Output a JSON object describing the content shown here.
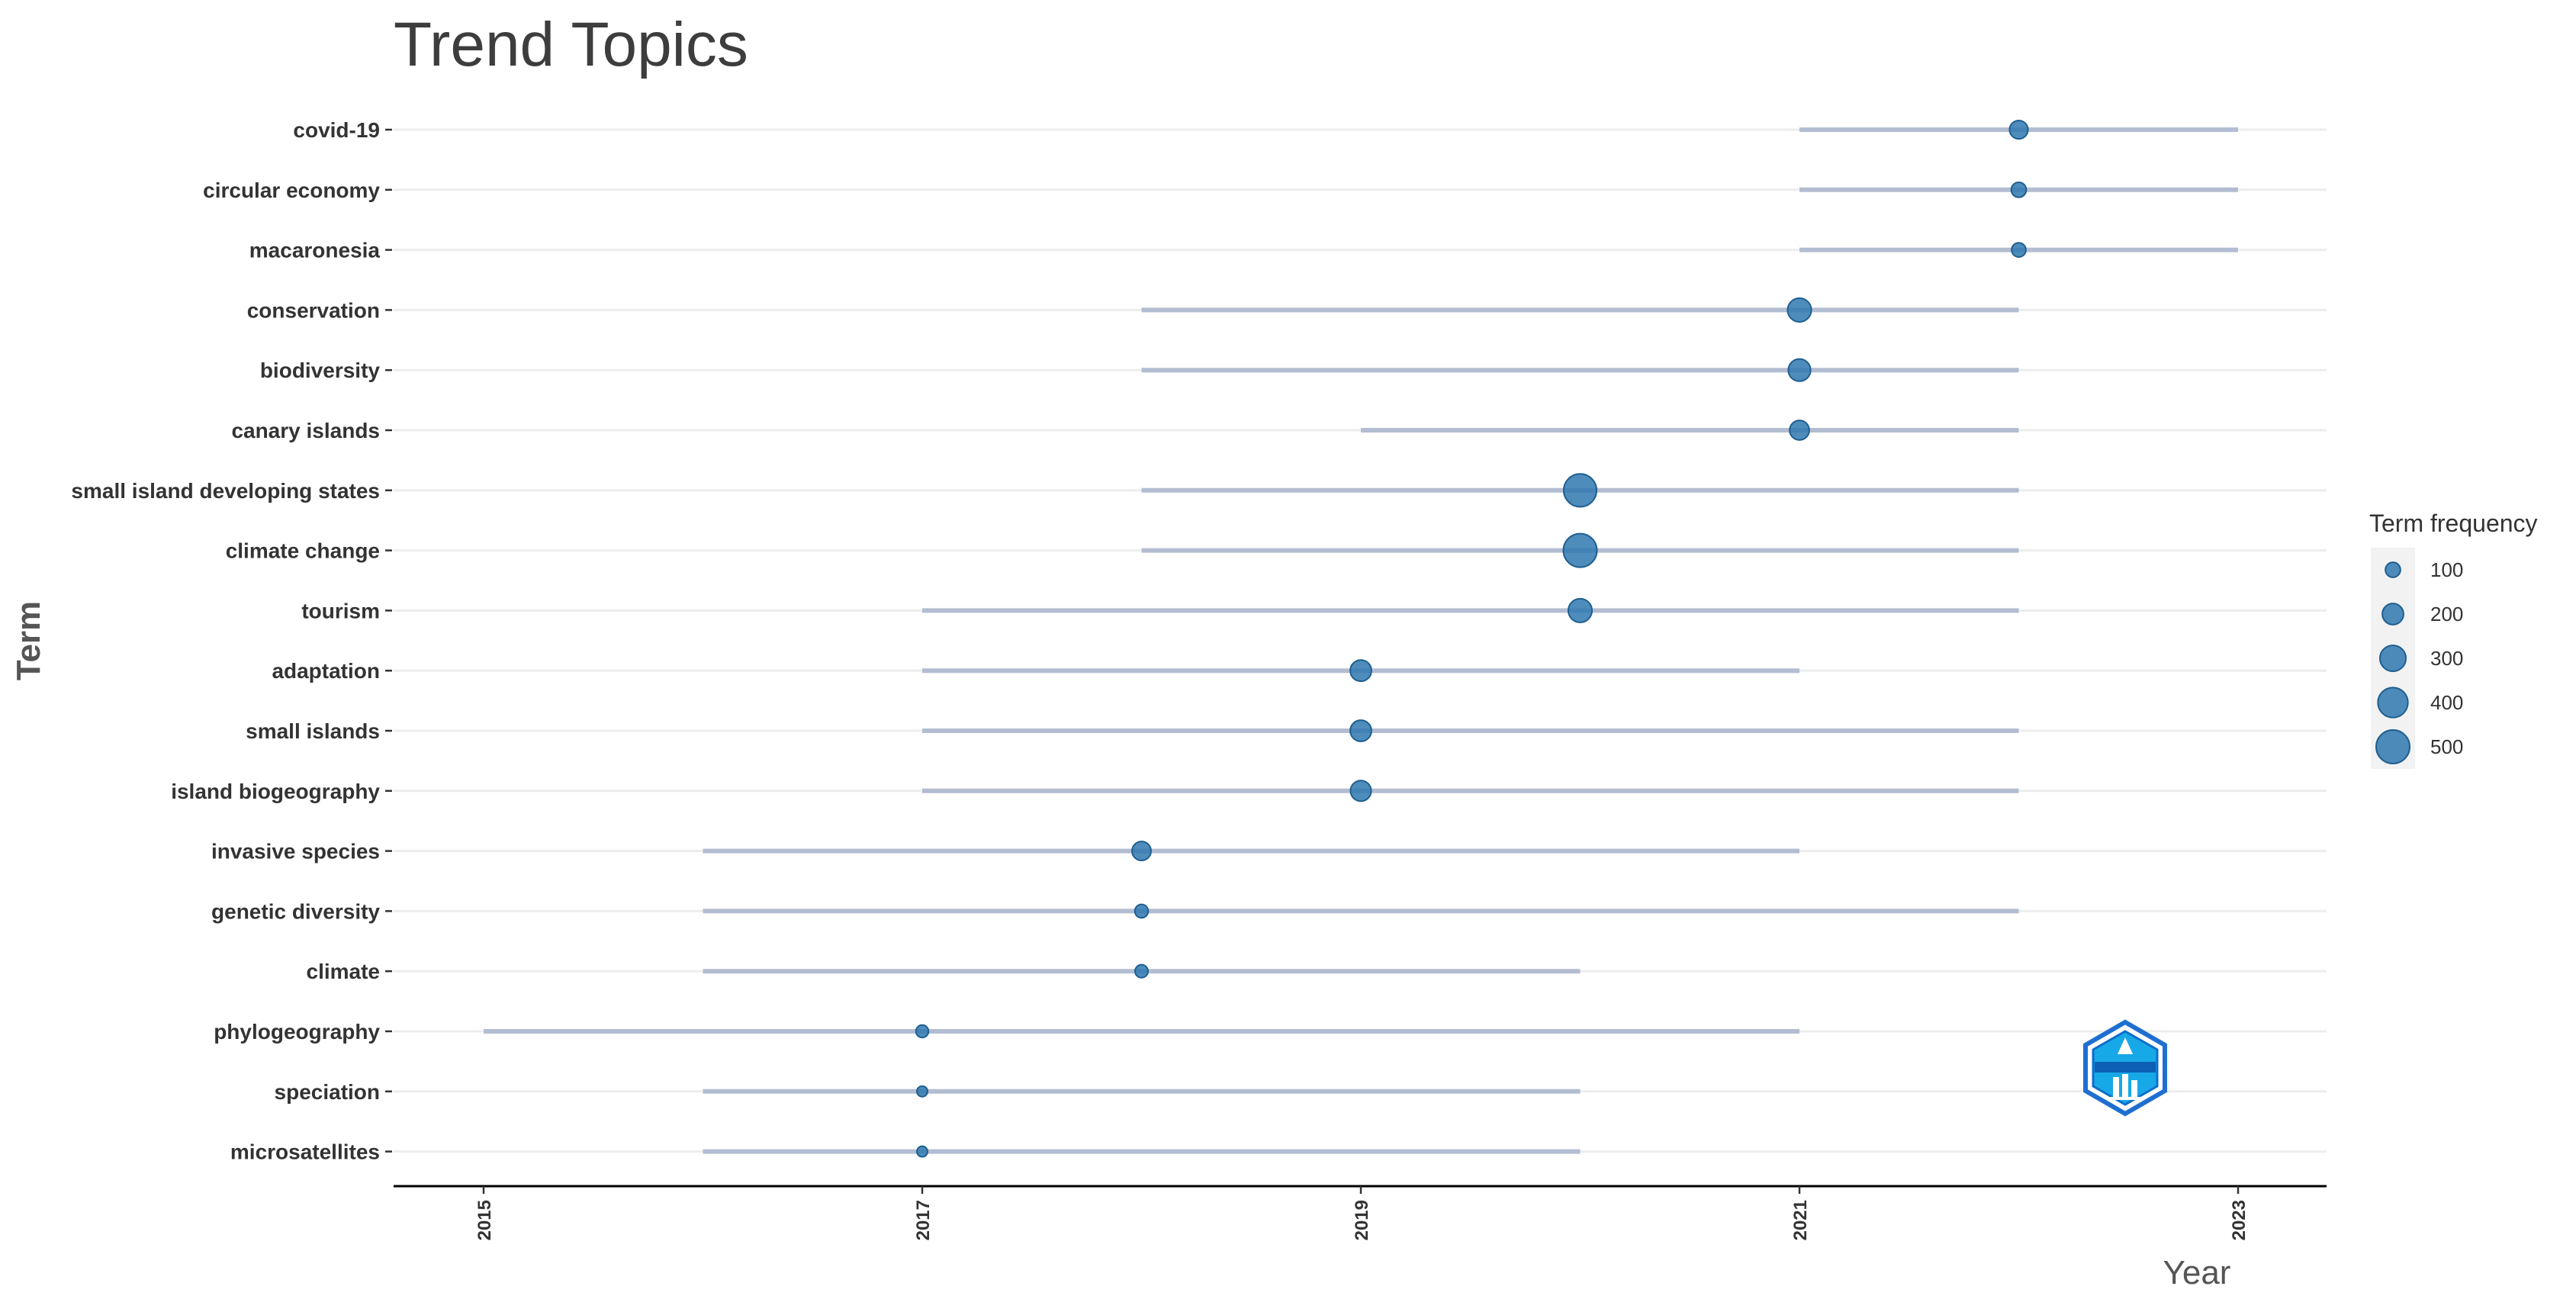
{
  "chart_data": {
    "type": "scatter",
    "title": "Trend Topics",
    "xlabel": "Year",
    "ylabel": "Term",
    "xlim": [
      2014.2,
      2023.8
    ],
    "xticks": [
      "2015",
      "2017",
      "2019",
      "2021",
      "2023"
    ],
    "grid": true,
    "legend": {
      "title": "Term frequency",
      "placement": "right",
      "sizes": [
        100,
        200,
        300,
        400,
        500
      ]
    },
    "colors": {
      "point": "#2f78b0",
      "point_stroke": "#1f5f8f",
      "range_line": "#b3bdd1",
      "grid": "#ededed",
      "axis": "#000000"
    },
    "logo": "bibliometrix-hex-logo",
    "terms": [
      {
        "term": "covid-19",
        "year_q1": 2021,
        "year_median": 2022,
        "year_q3": 2023,
        "freq": 150
      },
      {
        "term": "circular economy",
        "year_q1": 2021,
        "year_median": 2022,
        "year_q3": 2023,
        "freq": 100
      },
      {
        "term": "macaronesia",
        "year_q1": 2021,
        "year_median": 2022,
        "year_q3": 2023,
        "freq": 90
      },
      {
        "term": "conservation",
        "year_q1": 2018,
        "year_median": 2021,
        "year_q3": 2022,
        "freq": 250
      },
      {
        "term": "biodiversity",
        "year_q1": 2018,
        "year_median": 2021,
        "year_q3": 2022,
        "freq": 220
      },
      {
        "term": "canary islands",
        "year_q1": 2019,
        "year_median": 2021,
        "year_q3": 2022,
        "freq": 170
      },
      {
        "term": "small island developing states",
        "year_q1": 2018,
        "year_median": 2020,
        "year_q3": 2022,
        "freq": 480
      },
      {
        "term": "climate change",
        "year_q1": 2018,
        "year_median": 2020,
        "year_q3": 2022,
        "freq": 500
      },
      {
        "term": "tourism",
        "year_q1": 2017,
        "year_median": 2020,
        "year_q3": 2022,
        "freq": 250
      },
      {
        "term": "adaptation",
        "year_q1": 2017,
        "year_median": 2019,
        "year_q3": 2021,
        "freq": 200
      },
      {
        "term": "small islands",
        "year_q1": 2017,
        "year_median": 2019,
        "year_q3": 2022,
        "freq": 200
      },
      {
        "term": "island biogeography",
        "year_q1": 2017,
        "year_median": 2019,
        "year_q3": 2022,
        "freq": 190
      },
      {
        "term": "invasive species",
        "year_q1": 2016,
        "year_median": 2018,
        "year_q3": 2021,
        "freq": 160
      },
      {
        "term": "genetic diversity",
        "year_q1": 2016,
        "year_median": 2018,
        "year_q3": 2022,
        "freq": 80
      },
      {
        "term": "climate",
        "year_q1": 2016,
        "year_median": 2018,
        "year_q3": 2020,
        "freq": 75
      },
      {
        "term": "phylogeography",
        "year_q1": 2015,
        "year_median": 2017,
        "year_q3": 2021,
        "freq": 70
      },
      {
        "term": "speciation",
        "year_q1": 2016,
        "year_median": 2017,
        "year_q3": 2020,
        "freq": 50
      },
      {
        "term": "microsatellites",
        "year_q1": 2016,
        "year_median": 2017,
        "year_q3": 2020,
        "freq": 50
      }
    ]
  }
}
